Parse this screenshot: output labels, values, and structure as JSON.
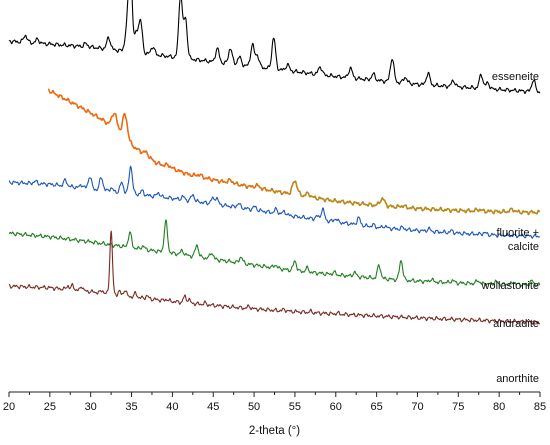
{
  "chart_data": {
    "type": "line",
    "xlabel": "2-theta (°)",
    "ylabel": "",
    "xlim": [
      20,
      85
    ],
    "xticks": [
      20,
      25,
      30,
      35,
      40,
      45,
      50,
      55,
      60,
      65,
      70,
      75,
      80,
      85
    ],
    "y_axis_visible": false,
    "grid": false,
    "legend": "none (series labelled directly at right)",
    "units": "offset intensity (arbitrary, 0-100)",
    "series": [
      {
        "name": "esseneite",
        "label_lines": [
          "esseneite"
        ],
        "color": "#000000",
        "x_start": 20,
        "x_end": 85,
        "baseline": [
          [
            20,
            89.5
          ],
          [
            30,
            88.0
          ],
          [
            40,
            85.5
          ],
          [
            50,
            83.0
          ],
          [
            60,
            80.5
          ],
          [
            70,
            78.5
          ],
          [
            85,
            76.5
          ]
        ],
        "peaks": [
          [
            22.0,
            1.8
          ],
          [
            23.5,
            1.0
          ],
          [
            29.4,
            0.8
          ],
          [
            32.2,
            3.0
          ],
          [
            34.4,
            5.0
          ],
          [
            34.85,
            23.0
          ],
          [
            35.6,
            5.0
          ],
          [
            36.1,
            8.0
          ],
          [
            37.6,
            2.0
          ],
          [
            41.0,
            16.0
          ],
          [
            41.6,
            10.0
          ],
          [
            45.5,
            3.5
          ],
          [
            47.1,
            4.0
          ],
          [
            48.2,
            2.0
          ],
          [
            49.8,
            5.5
          ],
          [
            50.4,
            3.0
          ],
          [
            52.4,
            8.0
          ],
          [
            54.1,
            1.5
          ],
          [
            58.1,
            2.0
          ],
          [
            61.8,
            2.5
          ],
          [
            64.6,
            1.5
          ],
          [
            66.9,
            6.0
          ],
          [
            68.5,
            1.5
          ],
          [
            71.3,
            3.0
          ],
          [
            74.4,
            1.5
          ],
          [
            77.8,
            3.5
          ],
          [
            78.6,
            1.5
          ],
          [
            84.2,
            3.0
          ]
        ],
        "widths": 0.22
      },
      {
        "name": "fluorite + calcite",
        "label_lines": [
          "fluorite +",
          "calcite"
        ],
        "color": "#ed6a12",
        "color_end": "#b88a1c",
        "x_start": 24.8,
        "x_end": 85,
        "baseline": [
          [
            24.8,
            77.0
          ],
          [
            28,
            73.5
          ],
          [
            31,
            70.0
          ],
          [
            33,
            67.3
          ],
          [
            35,
            63.0
          ],
          [
            38,
            58.5
          ],
          [
            42,
            55.5
          ],
          [
            46,
            53.7
          ],
          [
            50,
            52.2
          ],
          [
            55,
            50.3
          ],
          [
            60,
            48.7
          ],
          [
            65,
            47.6
          ],
          [
            70,
            46.8
          ],
          [
            75,
            46.3
          ],
          [
            80,
            46.0
          ],
          [
            85,
            45.8
          ]
        ],
        "peaks": [
          [
            32.9,
            3.8
          ],
          [
            34.2,
            6.0
          ],
          [
            36.8,
            0.8
          ],
          [
            39.5,
            0.5
          ],
          [
            43.3,
            0.5
          ],
          [
            47.1,
            0.7
          ],
          [
            50.4,
            0.6
          ],
          [
            55.0,
            3.5
          ],
          [
            56.6,
            0.8
          ],
          [
            65.7,
            1.8
          ],
          [
            68.2,
            0.4
          ],
          [
            77.5,
            0.4
          ],
          [
            81.6,
            0.6
          ]
        ],
        "widths": 0.3
      },
      {
        "name": "wollastonite",
        "label_lines": [
          "wollastonite"
        ],
        "color": "#1a56b8",
        "x_start": 20,
        "x_end": 85,
        "baseline": [
          [
            20,
            53.5
          ],
          [
            25,
            53.0
          ],
          [
            30,
            51.8
          ],
          [
            35,
            50.6
          ],
          [
            40,
            49.4
          ],
          [
            45,
            48.0
          ],
          [
            50,
            46.5
          ],
          [
            55,
            44.8
          ],
          [
            60,
            43.4
          ],
          [
            65,
            42.0
          ],
          [
            70,
            41.2
          ],
          [
            75,
            40.5
          ],
          [
            80,
            40.0
          ],
          [
            85,
            39.7
          ]
        ],
        "peaks": [
          [
            23.2,
            0.6
          ],
          [
            26.9,
            1.5
          ],
          [
            28.9,
            0.8
          ],
          [
            29.9,
            3.2
          ],
          [
            31.3,
            3.3
          ],
          [
            32.5,
            0.8
          ],
          [
            33.8,
            2.5
          ],
          [
            34.9,
            7.0
          ],
          [
            36.3,
            1.0
          ],
          [
            38.3,
            1.0
          ],
          [
            41.3,
            0.8
          ],
          [
            42.5,
            1.6
          ],
          [
            44.9,
            1.2
          ],
          [
            45.4,
            1.6
          ],
          [
            48.1,
            1.0
          ],
          [
            50.1,
            0.8
          ],
          [
            52.7,
            1.0
          ],
          [
            53.7,
            0.8
          ],
          [
            57.7,
            0.8
          ],
          [
            58.4,
            2.8
          ],
          [
            60.0,
            0.8
          ],
          [
            62.8,
            1.8
          ],
          [
            64.6,
            0.5
          ],
          [
            66.0,
            0.5
          ],
          [
            68.2,
            0.5
          ],
          [
            71.4,
            0.6
          ],
          [
            74.2,
            0.5
          ],
          [
            78.2,
            0.5
          ]
        ],
        "widths": 0.2
      },
      {
        "name": "andradite",
        "label_lines": [
          "andradite"
        ],
        "color": "#1f7f1f",
        "x_start": 20,
        "x_end": 85,
        "baseline": [
          [
            20,
            40.5
          ],
          [
            25,
            39.6
          ],
          [
            30,
            38.3
          ],
          [
            35,
            36.8
          ],
          [
            40,
            35.4
          ],
          [
            45,
            33.9
          ],
          [
            50,
            32.4
          ],
          [
            55,
            30.9
          ],
          [
            60,
            29.9
          ],
          [
            65,
            29.0
          ],
          [
            70,
            28.3
          ],
          [
            75,
            27.8
          ],
          [
            80,
            27.5
          ],
          [
            85,
            27.3
          ]
        ],
        "peaks": [
          [
            34.8,
            3.8
          ],
          [
            36.4,
            0.8
          ],
          [
            39.2,
            7.8
          ],
          [
            41.2,
            1.0
          ],
          [
            43.0,
            3.0
          ],
          [
            44.8,
            1.6
          ],
          [
            48.4,
            1.6
          ],
          [
            52.6,
            0.8
          ],
          [
            55.0,
            2.5
          ],
          [
            56.5,
            1.0
          ],
          [
            59.8,
            0.6
          ],
          [
            62.3,
            1.0
          ],
          [
            65.3,
            3.4
          ],
          [
            68.0,
            5.0
          ],
          [
            71.7,
            0.6
          ],
          [
            74.3,
            0.6
          ],
          [
            77.4,
            0.8
          ],
          [
            79.6,
            0.6
          ],
          [
            81.8,
            0.6
          ],
          [
            84.0,
            1.0
          ]
        ],
        "widths": 0.2
      },
      {
        "name": "anorthite",
        "label_lines": [
          "anorthite"
        ],
        "color": "#7a2a22",
        "x_start": 20,
        "x_end": 85,
        "baseline": [
          [
            20,
            27.0
          ],
          [
            25,
            26.6
          ],
          [
            30,
            25.6
          ],
          [
            35,
            24.3
          ],
          [
            40,
            23.1
          ],
          [
            45,
            22.1
          ],
          [
            50,
            21.2
          ],
          [
            55,
            20.5
          ],
          [
            60,
            19.9
          ],
          [
            65,
            19.4
          ],
          [
            70,
            18.9
          ],
          [
            75,
            18.5
          ],
          [
            80,
            18.1
          ],
          [
            85,
            17.8
          ]
        ],
        "peaks": [
          [
            27.2,
            1.0
          ],
          [
            27.8,
            1.2
          ],
          [
            28.9,
            1.2
          ],
          [
            31.4,
            0.7
          ],
          [
            32.5,
            16.0
          ],
          [
            33.5,
            1.0
          ],
          [
            34.2,
            1.6
          ],
          [
            35.5,
            1.0
          ],
          [
            36.9,
            0.7
          ],
          [
            39.3,
            0.4
          ],
          [
            41.5,
            1.6
          ],
          [
            42.0,
            1.0
          ],
          [
            44.0,
            0.4
          ],
          [
            49.4,
            0.6
          ],
          [
            53.7,
            0.4
          ],
          [
            56.9,
            0.3
          ],
          [
            60.2,
            0.3
          ]
        ],
        "widths": 0.16
      }
    ]
  }
}
